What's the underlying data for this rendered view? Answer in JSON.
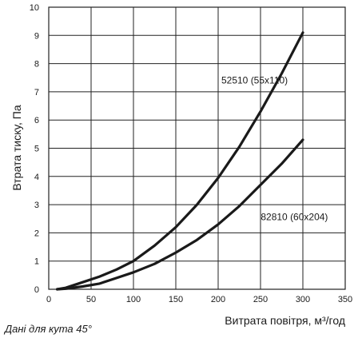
{
  "chart_data": {
    "type": "line",
    "xlabel": "Витрата повітря, м³/год",
    "ylabel": "Втрата тиску, Па",
    "xlim": [
      0,
      350
    ],
    "ylim": [
      0,
      10
    ],
    "x_ticks": [
      0,
      50,
      100,
      150,
      200,
      250,
      300,
      350
    ],
    "y_ticks": [
      0,
      1,
      2,
      3,
      4,
      5,
      6,
      7,
      8,
      9,
      10
    ],
    "grid": true,
    "series": [
      {
        "name": "52510 (55x110)",
        "x": [
          10,
          20,
          40,
          60,
          80,
          100,
          125,
          150,
          175,
          200,
          225,
          250,
          275,
          300
        ],
        "y": [
          0,
          0.05,
          0.25,
          0.45,
          0.7,
          1.0,
          1.55,
          2.2,
          3.0,
          3.95,
          5.05,
          6.3,
          7.65,
          9.1
        ]
      },
      {
        "name": "82810 (60x204)",
        "x": [
          10,
          20,
          40,
          60,
          80,
          100,
          125,
          150,
          175,
          200,
          225,
          250,
          275,
          300
        ],
        "y": [
          0,
          0.02,
          0.1,
          0.2,
          0.4,
          0.6,
          0.9,
          1.3,
          1.75,
          2.3,
          2.95,
          3.7,
          4.45,
          5.3
        ]
      }
    ],
    "color": "#1a1a1a",
    "grid_color": "#222222"
  },
  "note": "Дані для кута 45°"
}
